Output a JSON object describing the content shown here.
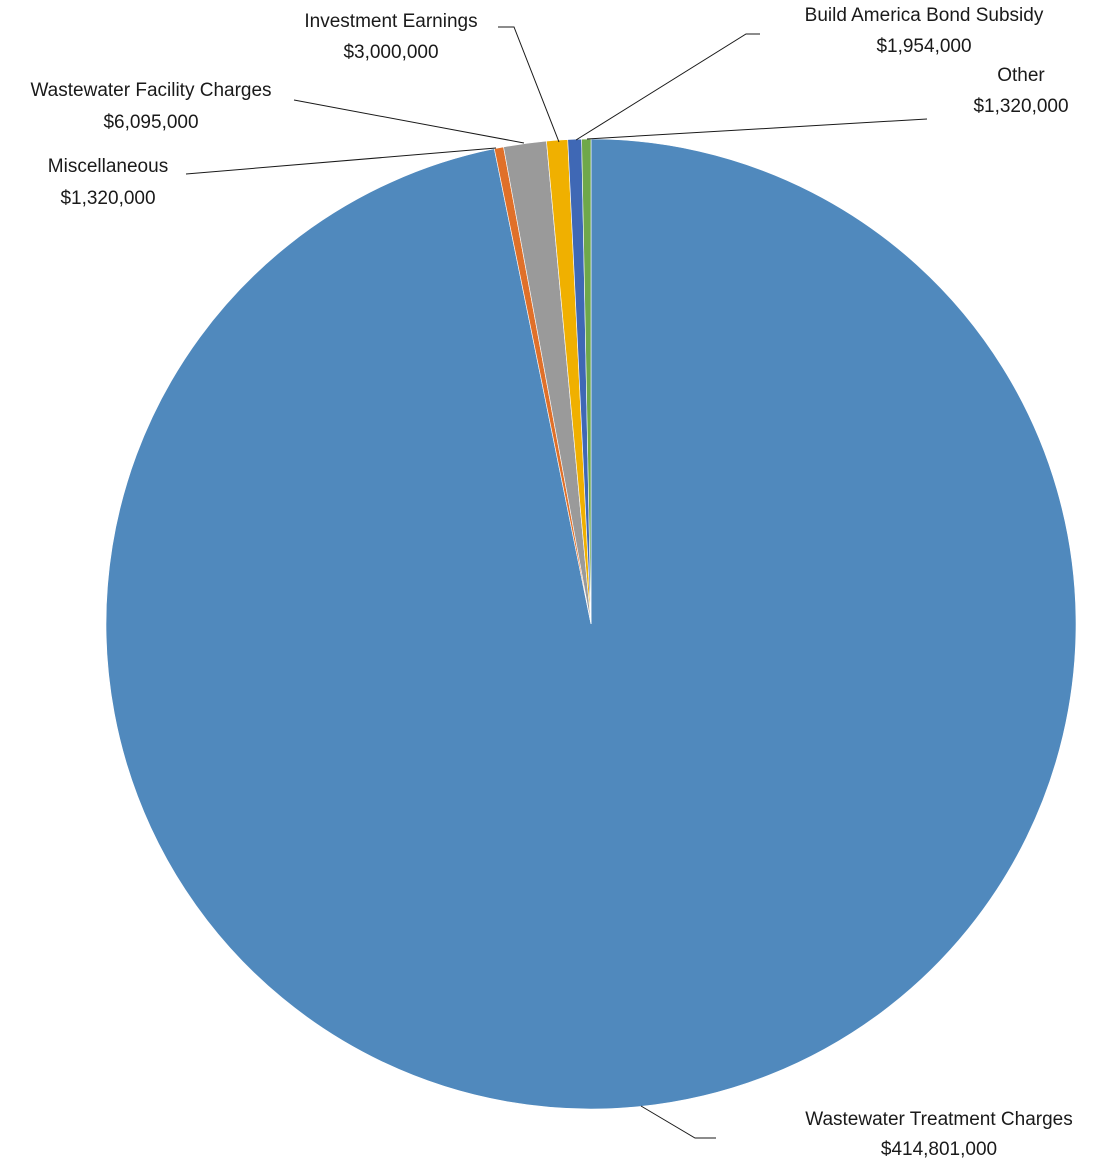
{
  "chart_data": {
    "type": "pie",
    "title": "",
    "start_angle_deg": 0,
    "direction": "clockwise",
    "slices": [
      {
        "label": "Wastewater Treatment Charges",
        "value_label": "$414,801,000",
        "value": 414801000,
        "color": "#5089BD"
      },
      {
        "label": "Miscellaneous",
        "value_label": "$1,320,000",
        "value": 1320000,
        "color": "#E07029"
      },
      {
        "label": "Wastewater Facility Charges",
        "value_label": "$6,095,000",
        "value": 6095000,
        "color": "#9A9A9A"
      },
      {
        "label": "Investment Earnings",
        "value_label": "$3,000,000",
        "value": 3000000,
        "color": "#F0B000"
      },
      {
        "label": "Build America Bond Subsidy",
        "value_label": "$1,954,000",
        "value": 1954000,
        "color": "#3F68B5"
      },
      {
        "label": "Other",
        "value_label": "$1,320,000",
        "value": 1320000,
        "color": "#6FA84A"
      }
    ]
  }
}
